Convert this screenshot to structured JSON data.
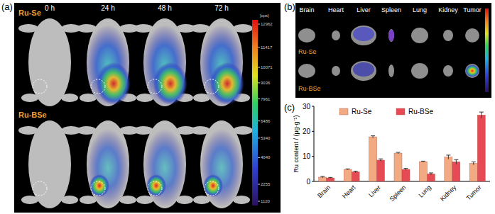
{
  "imaging": {
    "panel_label": "(a)",
    "times": [
      "0 h",
      "24 h",
      "48 h",
      "72 h"
    ],
    "rows": [
      "Ru-Se",
      "Ru-BSe"
    ],
    "colorbar": {
      "unit": "[cps]",
      "ticks": [
        12962,
        11417,
        10071,
        9036,
        7961,
        6486,
        5340,
        4040,
        2255,
        1120
      ]
    }
  },
  "organs": {
    "panel_label": "(b)",
    "organs": [
      "Brain",
      "Heart",
      "Liver",
      "Spleen",
      "Lung",
      "Kidney",
      "Tumor"
    ],
    "rows": [
      "Ru-Se",
      "Ru-BSe"
    ]
  },
  "chart_data": {
    "type": "bar",
    "panel_label": "(c)",
    "y_label": "Ru content / (μg·g⁻¹)",
    "categories": [
      "Brain",
      "Heart",
      "Liver",
      "Spleen",
      "Lung",
      "Kidney",
      "Tumor"
    ],
    "series": [
      {
        "name": "Ru-Se",
        "color": "#f2aa82",
        "values": [
          1.7,
          4.8,
          17.8,
          11.3,
          7.9,
          9.7,
          7.2
        ],
        "errors": [
          0.3,
          0.2,
          0.4,
          0.3,
          0.2,
          0.8,
          0.6
        ]
      },
      {
        "name": "Ru-BSe",
        "color": "#e64b55",
        "values": [
          1.4,
          3.8,
          8.5,
          4.8,
          3.0,
          7.8,
          26.5
        ],
        "errors": [
          0.2,
          0.3,
          0.5,
          0.4,
          0.4,
          0.9,
          1.2
        ]
      }
    ],
    "ylim": [
      0,
      30
    ],
    "yticks": [
      0,
      10,
      20,
      30
    ],
    "grid": false,
    "legend": "top"
  }
}
